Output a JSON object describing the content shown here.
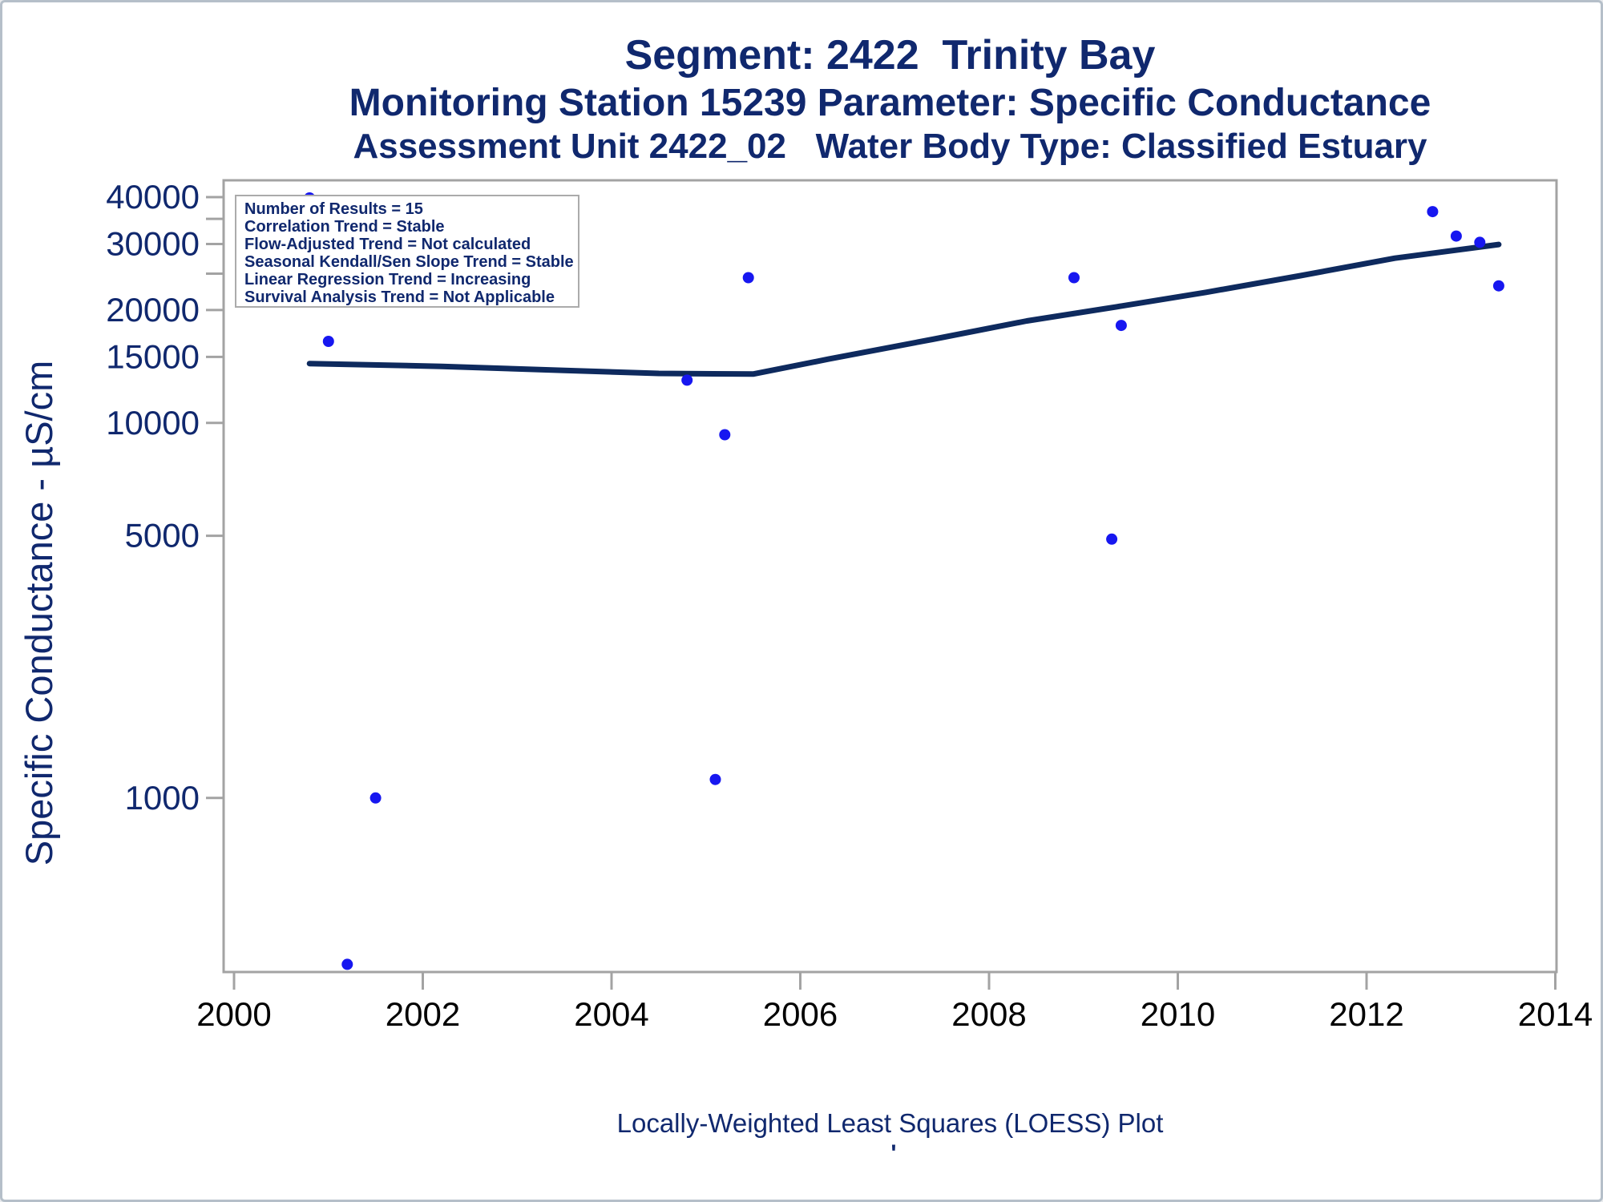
{
  "titles": {
    "line1": "Segment: 2422  Trinity Bay",
    "line2": "Monitoring Station 15239 Parameter: Specific Conductance",
    "line3": "Assessment Unit 2422_02   Water Body Type: Classified Estuary"
  },
  "stats_box": {
    "lines": [
      "Number of Results = 15",
      "Correlation Trend = Stable",
      "Flow-Adjusted Trend = Not calculated",
      "Seasonal Kendall/Sen Slope Trend = Stable",
      "Linear Regression Trend = Increasing",
      "Survival Analysis Trend = Not Applicable"
    ]
  },
  "footnote": {
    "text": "Locally-Weighted Least Squares (LOESS) Plot",
    "sub_mark": "'"
  },
  "colors": {
    "navy_text": "#10286E",
    "point_blue": "#1717F0",
    "loess_navy": "#0E2A5E",
    "axis_gray": "#A3A3A3",
    "x_label_black": "#000000",
    "frame_border": "#B5BFC9",
    "stats_border": "#ABABAB"
  },
  "chart_data": {
    "type": "scatter",
    "title": "Segment: 2422  Trinity Bay",
    "subtitle": "Monitoring Station 15239 Parameter: Specific Conductance",
    "subtitle2": "Assessment Unit 2422_02   Water Body Type: Classified Estuary",
    "xlabel": "",
    "ylabel": "Specific Conductance -  µS/cm",
    "footnote": "Locally-Weighted Least Squares (LOESS) Plot",
    "grid": false,
    "legend": "none",
    "x_axis": {
      "min": 1999.9,
      "max": 2014.0,
      "ticks": [
        2000,
        2002,
        2004,
        2006,
        2008,
        2010,
        2012,
        2014
      ]
    },
    "y_axis": {
      "scale": "log10",
      "min": 340,
      "max": 44500,
      "tick_values": [
        40000,
        35000,
        30000,
        25000,
        20000,
        15000,
        10000,
        5000,
        1000
      ],
      "labeled_values": [
        40000,
        30000,
        20000,
        15000,
        10000,
        5000,
        1000
      ]
    },
    "series": [
      {
        "name": "Observations",
        "type": "scatter",
        "marker": "circle",
        "color": "#1717F0",
        "points": [
          [
            2000.8,
            39800
          ],
          [
            2001.0,
            16500
          ],
          [
            2001.2,
            360
          ],
          [
            2001.5,
            1000
          ],
          [
            2004.8,
            13000
          ],
          [
            2005.1,
            1120
          ],
          [
            2005.2,
            9300
          ],
          [
            2005.45,
            24400
          ],
          [
            2008.9,
            24400
          ],
          [
            2009.3,
            4900
          ],
          [
            2009.4,
            18200
          ],
          [
            2012.7,
            36600
          ],
          [
            2012.95,
            31500
          ],
          [
            2013.2,
            30300
          ],
          [
            2013.4,
            23200
          ]
        ]
      },
      {
        "name": "LOESS trend",
        "type": "line",
        "color": "#0E2A5E",
        "points": [
          [
            2000.8,
            14400
          ],
          [
            2002.2,
            14150
          ],
          [
            2003.5,
            13800
          ],
          [
            2004.5,
            13550
          ],
          [
            2005.5,
            13500
          ],
          [
            2006.3,
            14800
          ],
          [
            2007.4,
            16700
          ],
          [
            2008.4,
            18700
          ],
          [
            2009.35,
            20400
          ],
          [
            2010.3,
            22300
          ],
          [
            2011.3,
            24700
          ],
          [
            2012.3,
            27500
          ],
          [
            2013.4,
            29900
          ]
        ]
      }
    ]
  }
}
